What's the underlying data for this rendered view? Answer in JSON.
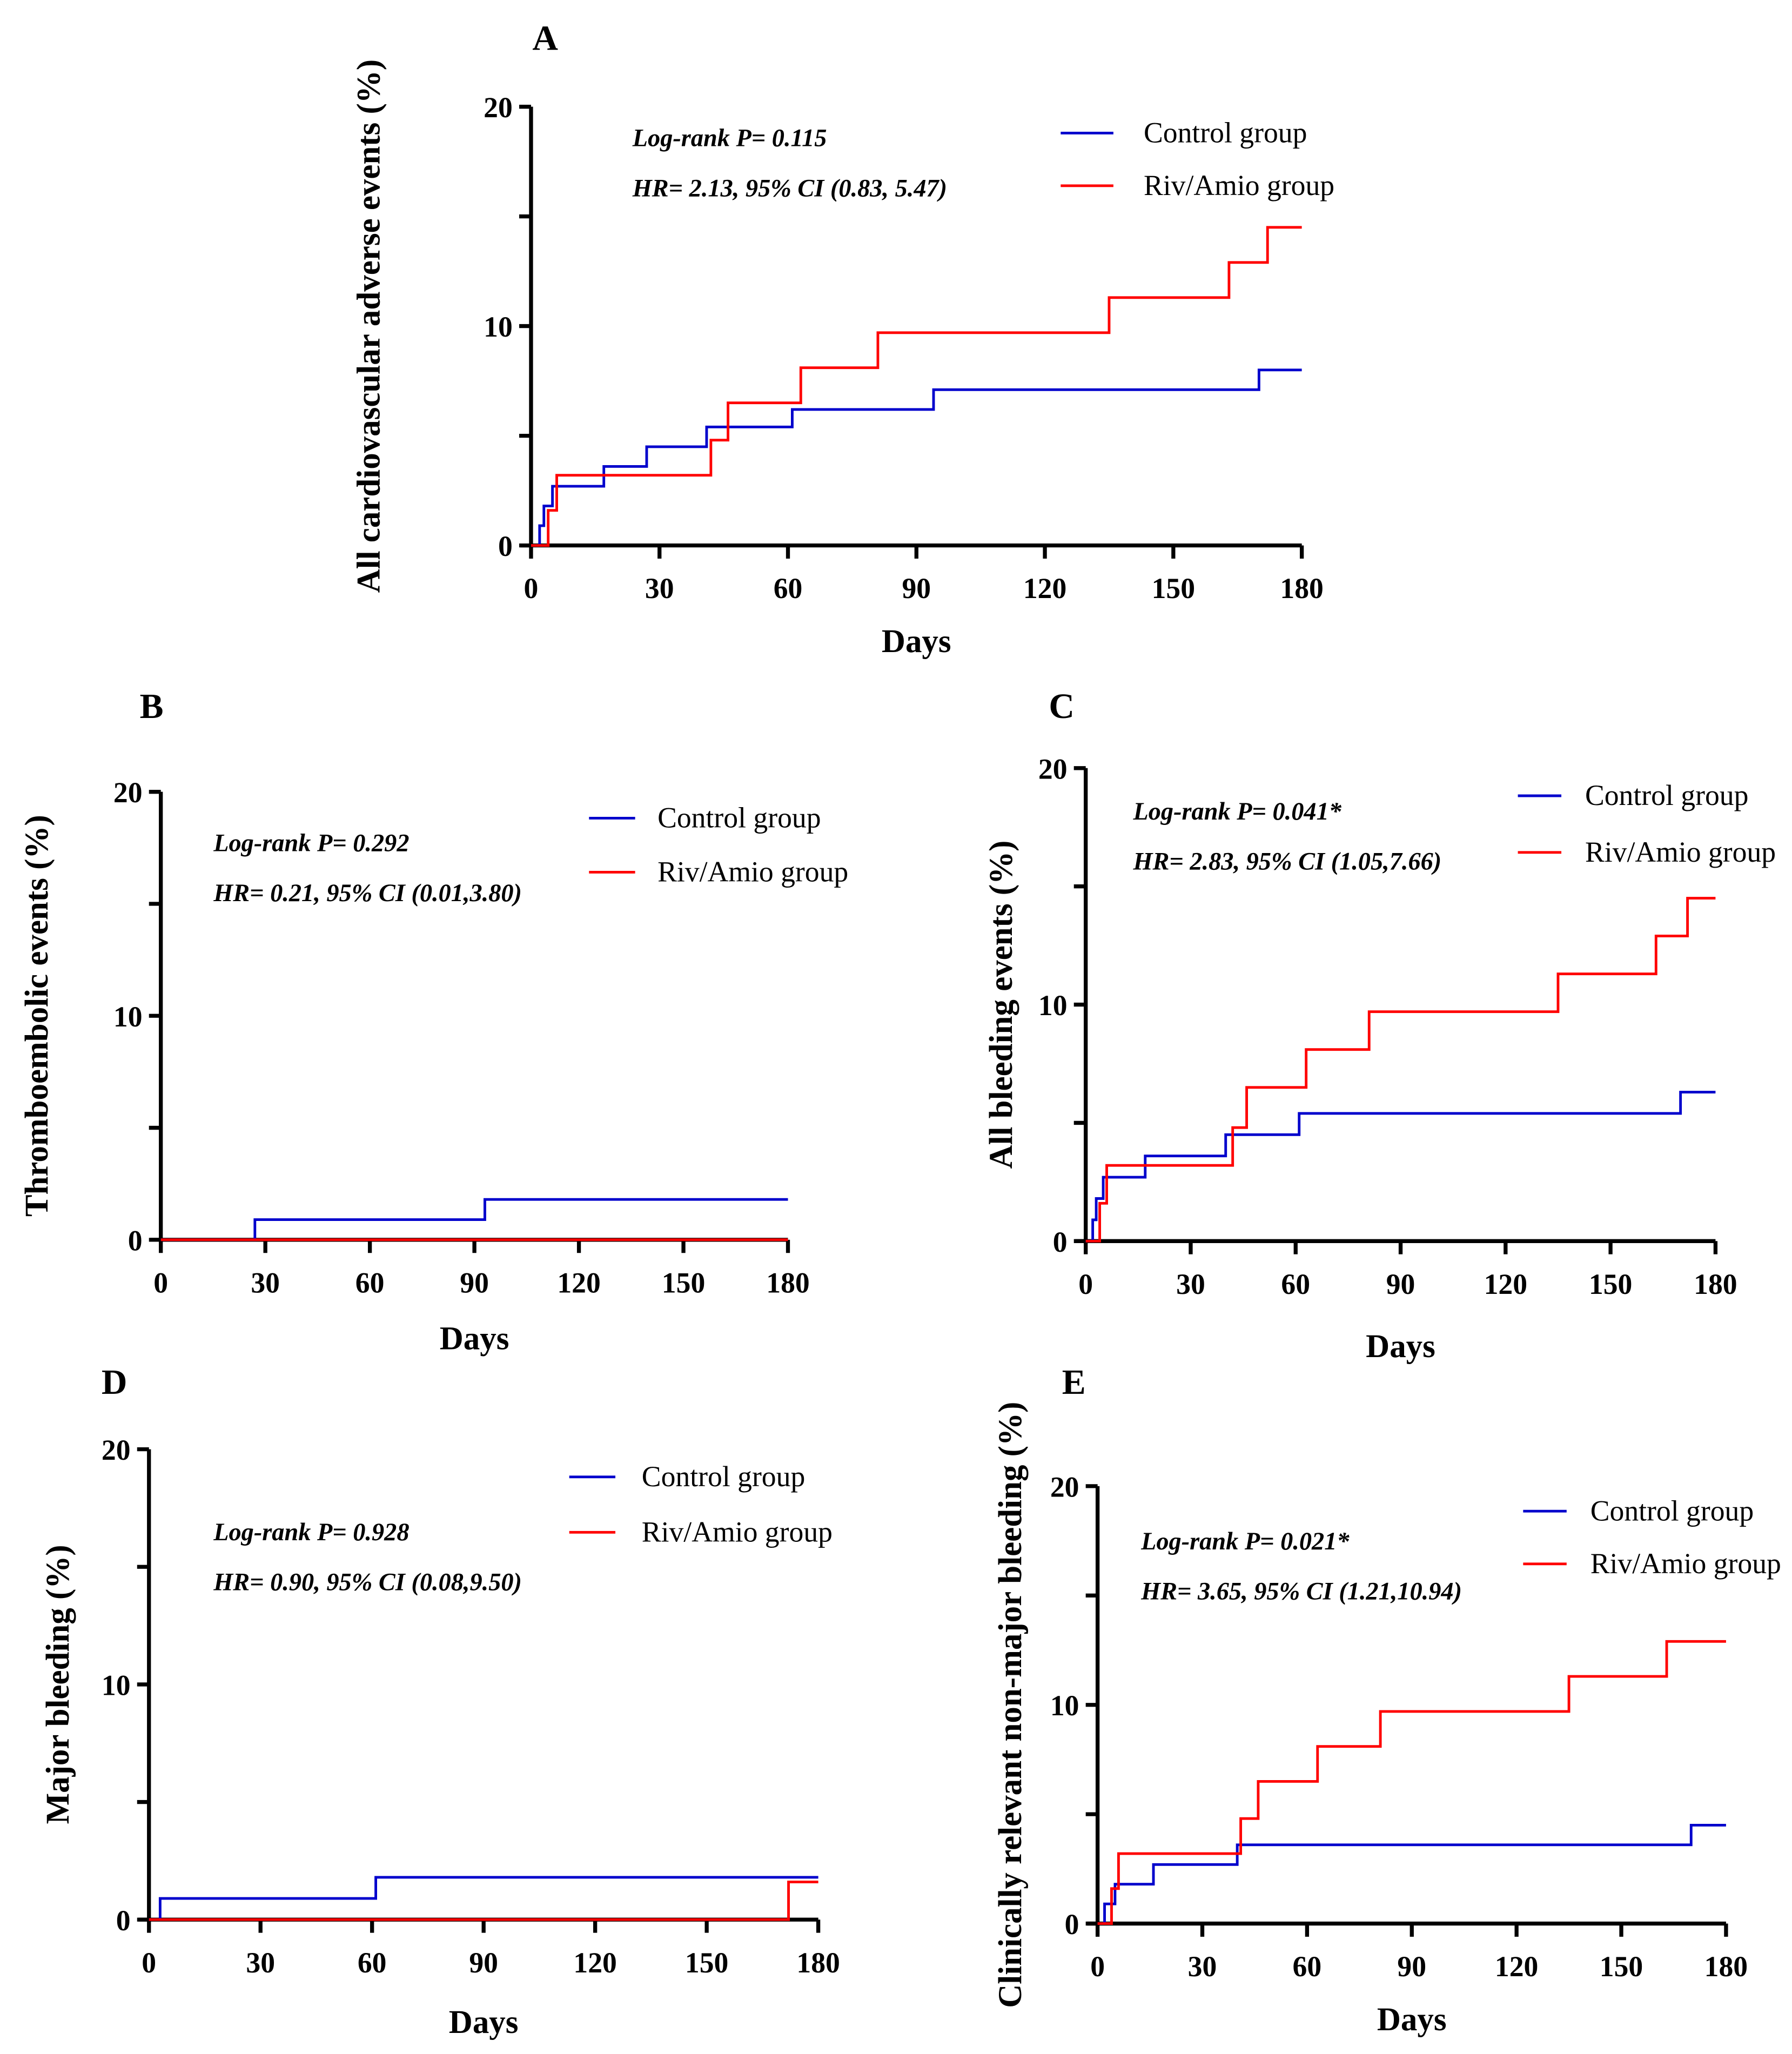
{
  "colors": {
    "control": "#0000cc",
    "riv_amio": "#ff0000",
    "axis": "#000000"
  },
  "legend": {
    "control": "Control group",
    "riv_amio": "Riv/Amio group"
  },
  "chart_data": [
    {
      "type": "line",
      "step": true,
      "panel": "A",
      "xlabel": "Days",
      "ylabel": "All cardiovascular adverse events (%)",
      "xlim": [
        0,
        180
      ],
      "ylim": [
        0,
        20
      ],
      "xticks": [
        "0",
        "30",
        "60",
        "90",
        "120",
        "150",
        "180"
      ],
      "yticks": [
        "0",
        "10",
        "20"
      ],
      "annotations": [
        "Log-rank P= 0.115",
        "HR= 2.13, 95% CI (0.83, 5.47)"
      ],
      "legend_position": "top-right",
      "series": [
        {
          "name": "Control group",
          "x": [
            0,
            2,
            3,
            5,
            17,
            27,
            41,
            61,
            94,
            170,
            180
          ],
          "y": [
            0,
            0.9,
            1.8,
            2.7,
            3.6,
            4.5,
            5.4,
            6.2,
            7.1,
            8.0,
            8.0
          ]
        },
        {
          "name": "Riv/Amio group",
          "x": [
            0,
            4,
            6,
            42,
            46,
            63,
            81,
            135,
            163,
            172,
            180
          ],
          "y": [
            0,
            1.6,
            3.2,
            4.8,
            6.5,
            8.1,
            9.7,
            11.3,
            12.9,
            14.5,
            14.5
          ]
        }
      ]
    },
    {
      "type": "line",
      "step": true,
      "panel": "B",
      "xlabel": "Days",
      "ylabel": "Thromboembolic events (%)",
      "xlim": [
        0,
        180
      ],
      "ylim": [
        0,
        20
      ],
      "xticks": [
        "0",
        "30",
        "60",
        "90",
        "120",
        "150",
        "180"
      ],
      "yticks": [
        "0",
        "10",
        "20"
      ],
      "annotations": [
        "Log-rank P= 0.292",
        "HR= 0.21, 95% CI (0.01,3.80)"
      ],
      "legend_position": "top-right",
      "series": [
        {
          "name": "Control group",
          "x": [
            0,
            27,
            93,
            180
          ],
          "y": [
            0,
            0.9,
            1.8,
            1.8
          ]
        },
        {
          "name": "Riv/Amio group",
          "x": [
            0,
            180
          ],
          "y": [
            0,
            0
          ]
        }
      ]
    },
    {
      "type": "line",
      "step": true,
      "panel": "C",
      "xlabel": "Days",
      "ylabel": "All bleeding events (%)",
      "xlim": [
        0,
        180
      ],
      "ylim": [
        0,
        20
      ],
      "xticks": [
        "0",
        "30",
        "60",
        "90",
        "120",
        "150",
        "180"
      ],
      "yticks": [
        "0",
        "10",
        "20"
      ],
      "annotations": [
        "Log-rank P= 0.041*",
        "HR= 2.83, 95% CI (1.05,7.66)"
      ],
      "legend_position": "top-right",
      "series": [
        {
          "name": "Control group",
          "x": [
            0,
            2,
            3,
            5,
            17,
            40,
            61,
            170,
            180
          ],
          "y": [
            0,
            0.9,
            1.8,
            2.7,
            3.6,
            4.5,
            5.4,
            6.3,
            6.3
          ]
        },
        {
          "name": "Riv/Amio group",
          "x": [
            0,
            4,
            6,
            42,
            46,
            63,
            81,
            135,
            163,
            172,
            180
          ],
          "y": [
            0,
            1.6,
            3.2,
            4.8,
            6.5,
            8.1,
            9.7,
            11.3,
            12.9,
            14.5,
            14.5
          ]
        }
      ]
    },
    {
      "type": "line",
      "step": true,
      "panel": "D",
      "xlabel": "Days",
      "ylabel": "Major bleeding (%)",
      "xlim": [
        0,
        180
      ],
      "ylim": [
        0,
        20
      ],
      "xticks": [
        "0",
        "30",
        "60",
        "90",
        "120",
        "150",
        "180"
      ],
      "yticks": [
        "0",
        "10",
        "20"
      ],
      "annotations": [
        "Log-rank P= 0.928",
        "HR= 0.90, 95% CI (0.08,9.50)"
      ],
      "legend_position": "top-right",
      "series": [
        {
          "name": "Control group",
          "x": [
            0,
            3,
            61,
            180
          ],
          "y": [
            0,
            0.9,
            1.8,
            1.8
          ]
        },
        {
          "name": "Riv/Amio group",
          "x": [
            0,
            172,
            180
          ],
          "y": [
            0,
            1.6,
            1.6
          ]
        }
      ]
    },
    {
      "type": "line",
      "step": true,
      "panel": "E",
      "xlabel": "Days",
      "ylabel": "Clinically relevant non-major bleeding (%)",
      "xlim": [
        0,
        180
      ],
      "ylim": [
        0,
        20
      ],
      "xticks": [
        "0",
        "30",
        "60",
        "90",
        "120",
        "150",
        "180"
      ],
      "yticks": [
        "0",
        "10",
        "20"
      ],
      "annotations": [
        "Log-rank P= 0.021*",
        "HR= 3.65, 95% CI (1.21,10.94)"
      ],
      "legend_position": "top-right",
      "series": [
        {
          "name": "Control group",
          "x": [
            0,
            2,
            5,
            16,
            40,
            170,
            180
          ],
          "y": [
            0,
            0.9,
            1.8,
            2.7,
            3.6,
            4.5,
            4.5
          ]
        },
        {
          "name": "Riv/Amio group",
          "x": [
            0,
            4,
            6,
            41,
            46,
            63,
            81,
            135,
            163,
            180
          ],
          "y": [
            0,
            1.6,
            3.2,
            4.8,
            6.5,
            8.1,
            9.7,
            11.3,
            12.9,
            12.9
          ]
        }
      ]
    }
  ]
}
